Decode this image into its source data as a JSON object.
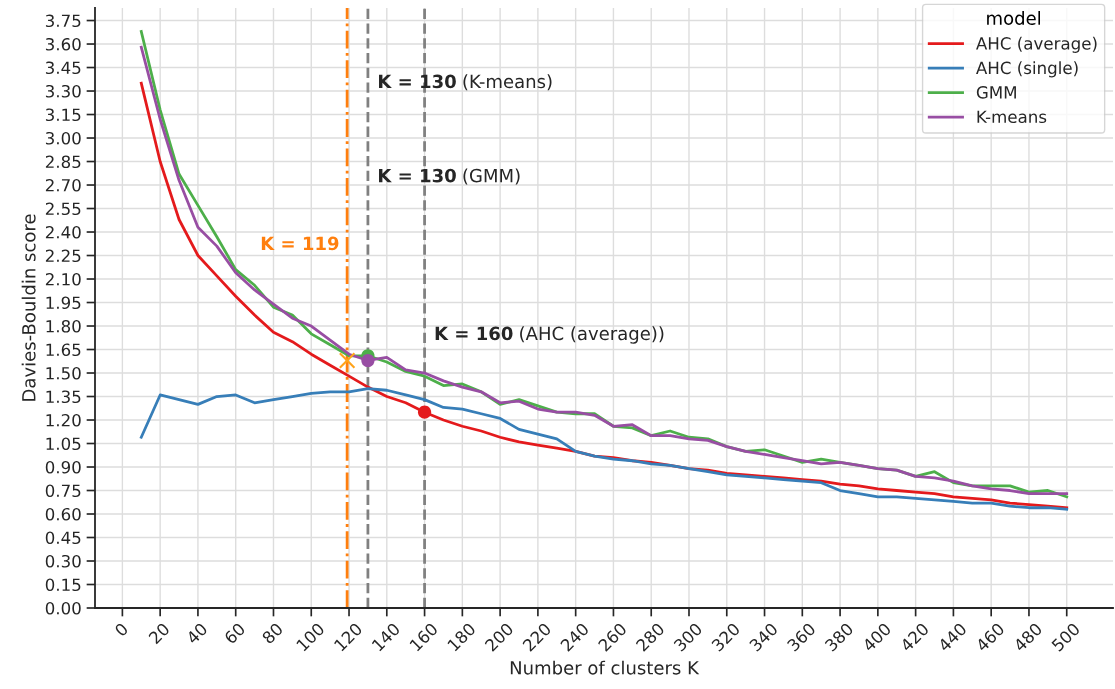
{
  "chart_data": {
    "type": "line",
    "xlabel": "Number of clusters K",
    "ylabel": "Davies-Bouldin score",
    "legend_title": "model",
    "legend": "top right",
    "grid": true,
    "x": [
      10,
      20,
      30,
      40,
      50,
      60,
      70,
      80,
      90,
      100,
      110,
      120,
      130,
      140,
      150,
      160,
      170,
      180,
      190,
      200,
      210,
      220,
      230,
      240,
      250,
      260,
      270,
      280,
      290,
      300,
      310,
      320,
      330,
      340,
      350,
      360,
      370,
      380,
      390,
      400,
      410,
      420,
      430,
      440,
      450,
      460,
      470,
      480,
      490,
      500
    ],
    "series": [
      {
        "name": "AHC (average)",
        "color": "#e41a1c",
        "values": [
          3.35,
          2.85,
          2.48,
          2.25,
          2.12,
          1.99,
          1.87,
          1.76,
          1.7,
          1.62,
          1.55,
          1.48,
          1.41,
          1.35,
          1.31,
          1.25,
          1.2,
          1.16,
          1.13,
          1.09,
          1.06,
          1.04,
          1.02,
          1.0,
          0.97,
          0.96,
          0.94,
          0.93,
          0.91,
          0.89,
          0.88,
          0.86,
          0.85,
          0.84,
          0.83,
          0.82,
          0.81,
          0.79,
          0.78,
          0.76,
          0.75,
          0.74,
          0.73,
          0.71,
          0.7,
          0.69,
          0.67,
          0.66,
          0.65,
          0.64
        ]
      },
      {
        "name": "AHC (single)",
        "color": "#377eb8",
        "values": [
          1.09,
          1.36,
          1.33,
          1.3,
          1.35,
          1.36,
          1.31,
          1.33,
          1.35,
          1.37,
          1.38,
          1.38,
          1.4,
          1.39,
          1.36,
          1.33,
          1.28,
          1.27,
          1.24,
          1.21,
          1.14,
          1.11,
          1.08,
          1.0,
          0.97,
          0.95,
          0.94,
          0.92,
          0.91,
          0.89,
          0.87,
          0.85,
          0.84,
          0.83,
          0.82,
          0.81,
          0.8,
          0.75,
          0.73,
          0.71,
          0.71,
          0.7,
          0.69,
          0.68,
          0.67,
          0.67,
          0.65,
          0.64,
          0.64,
          0.63
        ]
      },
      {
        "name": "GMM",
        "color": "#4daf4a",
        "values": [
          3.68,
          3.18,
          2.77,
          2.57,
          2.37,
          2.16,
          2.06,
          1.92,
          1.87,
          1.75,
          1.68,
          1.61,
          1.61,
          1.57,
          1.51,
          1.48,
          1.42,
          1.43,
          1.38,
          1.3,
          1.33,
          1.29,
          1.25,
          1.24,
          1.24,
          1.16,
          1.15,
          1.1,
          1.13,
          1.09,
          1.08,
          1.03,
          1.0,
          1.01,
          0.97,
          0.93,
          0.95,
          0.93,
          0.91,
          0.89,
          0.88,
          0.84,
          0.87,
          0.8,
          0.78,
          0.78,
          0.78,
          0.74,
          0.75,
          0.71
        ]
      },
      {
        "name": "K-means",
        "color": "#984ea3",
        "values": [
          3.58,
          3.12,
          2.73,
          2.43,
          2.31,
          2.14,
          2.03,
          1.94,
          1.85,
          1.8,
          1.71,
          1.62,
          1.58,
          1.6,
          1.52,
          1.5,
          1.45,
          1.41,
          1.38,
          1.31,
          1.32,
          1.27,
          1.25,
          1.25,
          1.23,
          1.16,
          1.17,
          1.1,
          1.1,
          1.08,
          1.07,
          1.03,
          1.0,
          0.98,
          0.96,
          0.94,
          0.92,
          0.93,
          0.91,
          0.89,
          0.88,
          0.84,
          0.83,
          0.81,
          0.78,
          0.76,
          0.75,
          0.73,
          0.73,
          0.73
        ]
      },
      {
        "type": "scatter",
        "marker": "circle",
        "color": "#4daf4a",
        "x": [
          130
        ],
        "values": [
          1.61
        ]
      },
      {
        "type": "scatter",
        "marker": "circle",
        "color": "#984ea3",
        "x": [
          130
        ],
        "values": [
          1.58
        ]
      },
      {
        "type": "scatter",
        "marker": "circle",
        "color": "#e41a1c",
        "x": [
          160
        ],
        "values": [
          1.25
        ]
      },
      {
        "type": "scatter",
        "marker": "cross",
        "color": "#ffa31a",
        "x": [
          119
        ],
        "values": [
          1.58
        ]
      }
    ],
    "ref_lines": [
      {
        "axis": "x",
        "value": 119,
        "label": "K = 119",
        "color": "#ff7f0e",
        "line_style": "dashdot"
      },
      {
        "axis": "x",
        "value": 130,
        "label": "K = 130 (K-means)",
        "color": "#808080",
        "line_style": "dashed"
      },
      {
        "axis": "x",
        "value": 160,
        "label": "K = 160 (AHC (average))",
        "color": "#808080",
        "line_style": "dashed"
      }
    ],
    "annotations": [
      {
        "text": "K = 130 (GMM)",
        "x": 130,
        "y": 2.75
      }
    ],
    "xlim": [
      -14.5,
      524.5
    ],
    "xticks": [
      0,
      20,
      40,
      60,
      80,
      100,
      120,
      140,
      160,
      180,
      200,
      220,
      240,
      260,
      280,
      300,
      320,
      340,
      360,
      380,
      400,
      420,
      440,
      460,
      480,
      500
    ],
    "ylim": [
      0,
      3.83
    ],
    "yticks": [
      {
        "value": 0,
        "label": "0.00"
      },
      0.15,
      {
        "value": 0.3,
        "label": "0.30"
      },
      0.45,
      {
        "value": 0.6,
        "label": "0.60"
      },
      0.75,
      {
        "value": 0.9,
        "label": "0.90"
      },
      1.05,
      {
        "value": 1.2,
        "label": "1.20"
      },
      1.35,
      {
        "value": 1.5,
        "label": "1.50"
      },
      1.65,
      {
        "value": 1.8,
        "label": "1.80"
      },
      1.95,
      {
        "value": 2.1,
        "label": "2.10"
      },
      2.25,
      {
        "value": 2.4,
        "label": "2.40"
      },
      2.55,
      {
        "value": 2.7,
        "label": "2.70"
      },
      2.85,
      {
        "value": 3.0,
        "label": "3.00"
      },
      3.15,
      {
        "value": 3.3,
        "label": "3.30"
      },
      3.45,
      {
        "value": 3.6,
        "label": "3.60"
      },
      3.75
    ]
  }
}
